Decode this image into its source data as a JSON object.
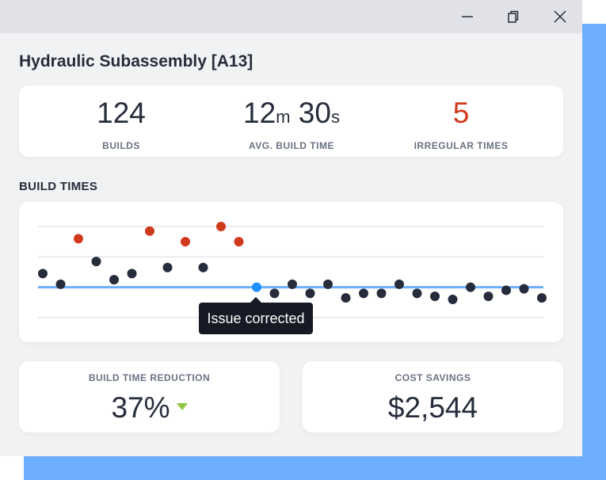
{
  "window": {
    "title": "Hydraulic Subassembly [A13]",
    "controls": [
      "minimize",
      "restore",
      "close"
    ]
  },
  "stats": [
    {
      "value": "124",
      "label": "BUILDS"
    },
    {
      "value_min": "12",
      "unit_min": "m",
      "value_sec": "30",
      "unit_sec": "s",
      "label": "AVG. BUILD TIME"
    },
    {
      "value": "5",
      "label": "IRREGULAR TIMES",
      "color": "#d03a1c"
    }
  ],
  "section_title": "BUILD TIMES",
  "chart_data": {
    "type": "scatter",
    "title": "",
    "grid": true,
    "ylim": [
      0,
      3
    ],
    "reference_line": 1.0,
    "colors": {
      "normal": "#262c3b",
      "irregular": "#d03a1c",
      "highlight": "#1e90ff",
      "reference": "#6eaffd"
    },
    "points": [
      {
        "x": 1,
        "y": 1.45,
        "status": "normal"
      },
      {
        "x": 2,
        "y": 1.1,
        "status": "normal"
      },
      {
        "x": 3,
        "y": 2.6,
        "status": "irregular"
      },
      {
        "x": 4,
        "y": 1.85,
        "status": "normal"
      },
      {
        "x": 5,
        "y": 1.25,
        "status": "normal"
      },
      {
        "x": 6,
        "y": 1.45,
        "status": "normal"
      },
      {
        "x": 7,
        "y": 2.85,
        "status": "irregular"
      },
      {
        "x": 8,
        "y": 1.65,
        "status": "normal"
      },
      {
        "x": 9,
        "y": 2.5,
        "status": "irregular"
      },
      {
        "x": 10,
        "y": 1.65,
        "status": "normal"
      },
      {
        "x": 11,
        "y": 3.0,
        "status": "irregular"
      },
      {
        "x": 12,
        "y": 2.5,
        "status": "irregular"
      },
      {
        "x": 13,
        "y": 1.0,
        "status": "highlight"
      },
      {
        "x": 14,
        "y": 0.8,
        "status": "normal"
      },
      {
        "x": 15,
        "y": 1.1,
        "status": "normal"
      },
      {
        "x": 16,
        "y": 0.8,
        "status": "normal"
      },
      {
        "x": 17,
        "y": 1.1,
        "status": "normal"
      },
      {
        "x": 18,
        "y": 0.65,
        "status": "normal"
      },
      {
        "x": 19,
        "y": 0.8,
        "status": "normal"
      },
      {
        "x": 20,
        "y": 0.8,
        "status": "normal"
      },
      {
        "x": 21,
        "y": 1.1,
        "status": "normal"
      },
      {
        "x": 22,
        "y": 0.8,
        "status": "normal"
      },
      {
        "x": 23,
        "y": 0.7,
        "status": "normal"
      },
      {
        "x": 24,
        "y": 0.6,
        "status": "normal"
      },
      {
        "x": 25,
        "y": 1.0,
        "status": "normal"
      },
      {
        "x": 26,
        "y": 0.7,
        "status": "normal"
      },
      {
        "x": 27,
        "y": 0.9,
        "status": "normal"
      },
      {
        "x": 28,
        "y": 0.95,
        "status": "normal"
      },
      {
        "x": 29,
        "y": 0.65,
        "status": "normal"
      }
    ],
    "annotation": "Issue corrected"
  },
  "bottom_cards": [
    {
      "label": "BUILD TIME REDUCTION",
      "value": "37%",
      "trend": "down",
      "trend_color": "#8dc63f"
    },
    {
      "label": "COST SAVINGS",
      "value": "$2,544"
    }
  ]
}
